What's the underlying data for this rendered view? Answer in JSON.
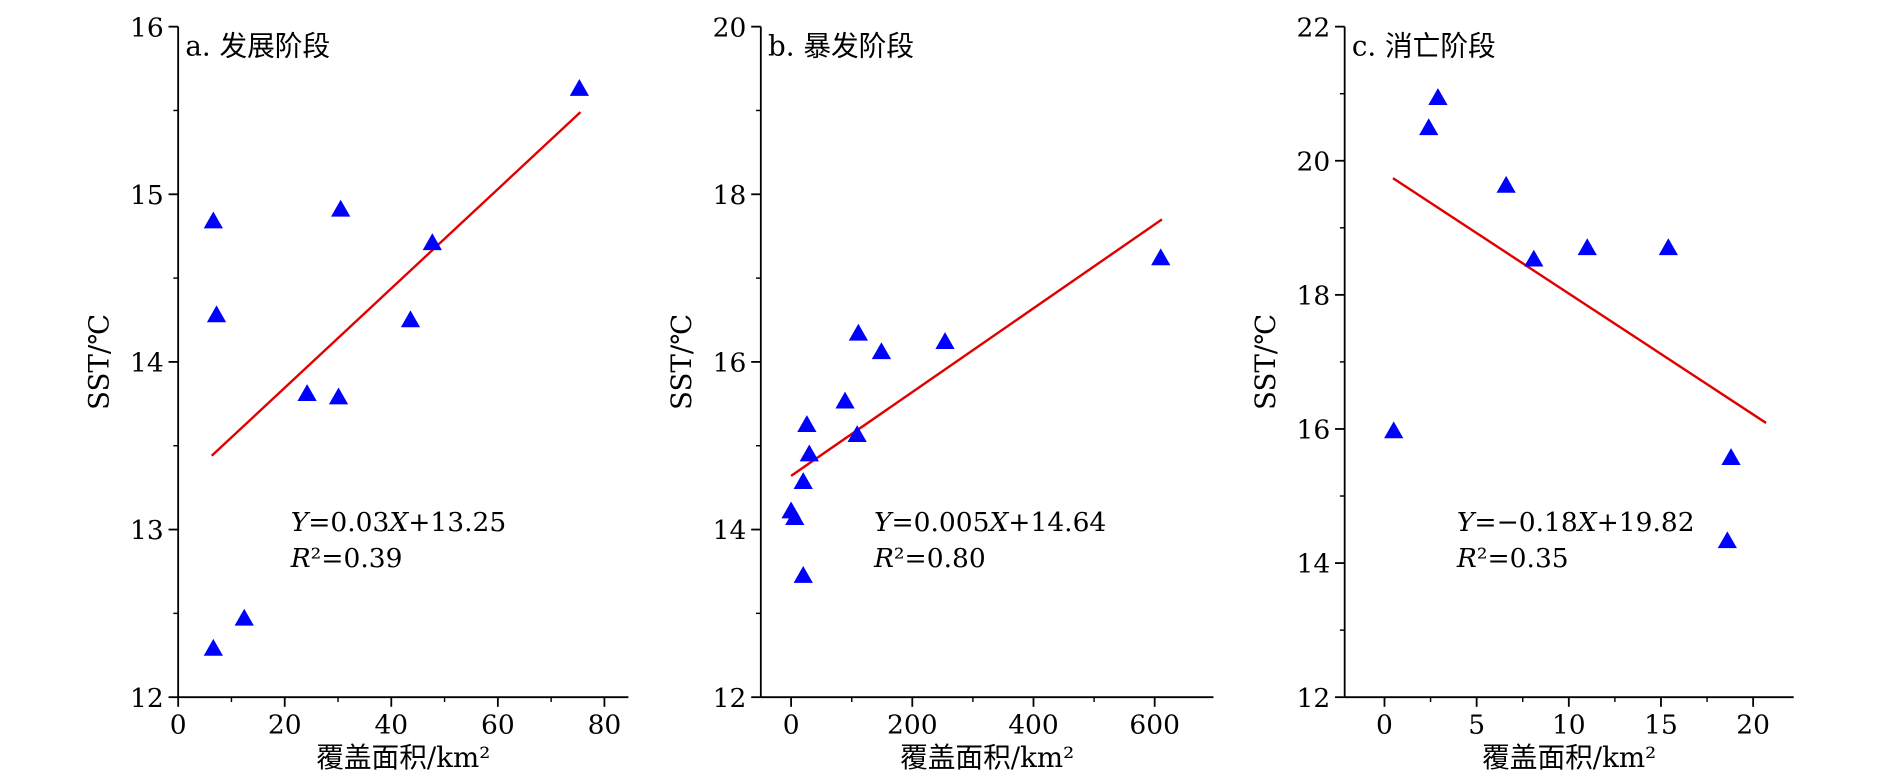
{
  "chart_data": [
    {
      "type": "scatter",
      "title": "a. 发展阶段",
      "xlabel": "覆盖面积/km²",
      "ylabel": "SST/℃",
      "color": "#0000ff",
      "fit_color": "#e00000",
      "x": [
        6.6,
        7.2,
        6.6,
        12.4,
        24.2,
        30.1,
        30.5,
        43.6,
        47.7,
        75.3
      ],
      "values": [
        14.84,
        14.28,
        12.29,
        12.47,
        13.81,
        13.79,
        14.91,
        14.25,
        14.71,
        15.63
      ],
      "fit_line": {
        "x": [
          6.3,
          75.5
        ],
        "values": [
          13.44,
          15.49
        ]
      },
      "equation": "Y=0.03X+13.25",
      "r2": "R²=0.39",
      "xlim": [
        0,
        84.5
      ],
      "xticks": [
        0,
        20,
        40,
        60,
        80
      ],
      "ylim": [
        12,
        16
      ],
      "yticks": [
        12,
        13,
        14,
        15,
        16
      ]
    },
    {
      "type": "scatter",
      "title": "b. 暴发阶段",
      "xlabel": "覆盖面积/km²",
      "ylabel": "SST/℃",
      "color": "#0000ff",
      "fit_color": "#e00000",
      "x": [
        0,
        6,
        20,
        20,
        26,
        30,
        89,
        109,
        111,
        149,
        254,
        610
      ],
      "values": [
        14.22,
        14.14,
        13.45,
        14.57,
        15.25,
        14.9,
        15.53,
        15.13,
        16.34,
        16.12,
        16.24,
        17.24
      ],
      "fit_line": {
        "x": [
          0,
          612
        ],
        "values": [
          14.64,
          17.7
        ]
      },
      "equation": "Y=0.005X+14.64",
      "r2": "R²=0.80",
      "xlim": [
        -50,
        697
      ],
      "xticks": [
        0,
        200,
        400,
        600
      ],
      "ylim": [
        12,
        20
      ],
      "yticks": [
        12,
        14,
        16,
        18,
        20
      ]
    },
    {
      "type": "scatter",
      "title": "c. 消亡阶段",
      "xlabel": "覆盖面积/km²",
      "ylabel": "SST/℃",
      "color": "#0000ff",
      "fit_color": "#e00000",
      "x": [
        0.5,
        2.4,
        2.9,
        6.6,
        8.1,
        11.0,
        15.4,
        18.6,
        18.8
      ],
      "values": [
        15.97,
        20.49,
        20.94,
        19.63,
        18.53,
        18.7,
        18.7,
        14.33,
        15.57
      ],
      "fit_line": {
        "x": [
          0.46,
          20.7
        ],
        "values": [
          19.74,
          16.09
        ]
      },
      "equation": "Y=−0.18X+19.82",
      "r2": "R²=0.35",
      "xlim": [
        -2.16,
        22.2
      ],
      "xticks": [
        0,
        5,
        10,
        15,
        20
      ],
      "ylim": [
        12,
        22
      ],
      "yticks": [
        12,
        14,
        16,
        18,
        20,
        22
      ]
    }
  ]
}
